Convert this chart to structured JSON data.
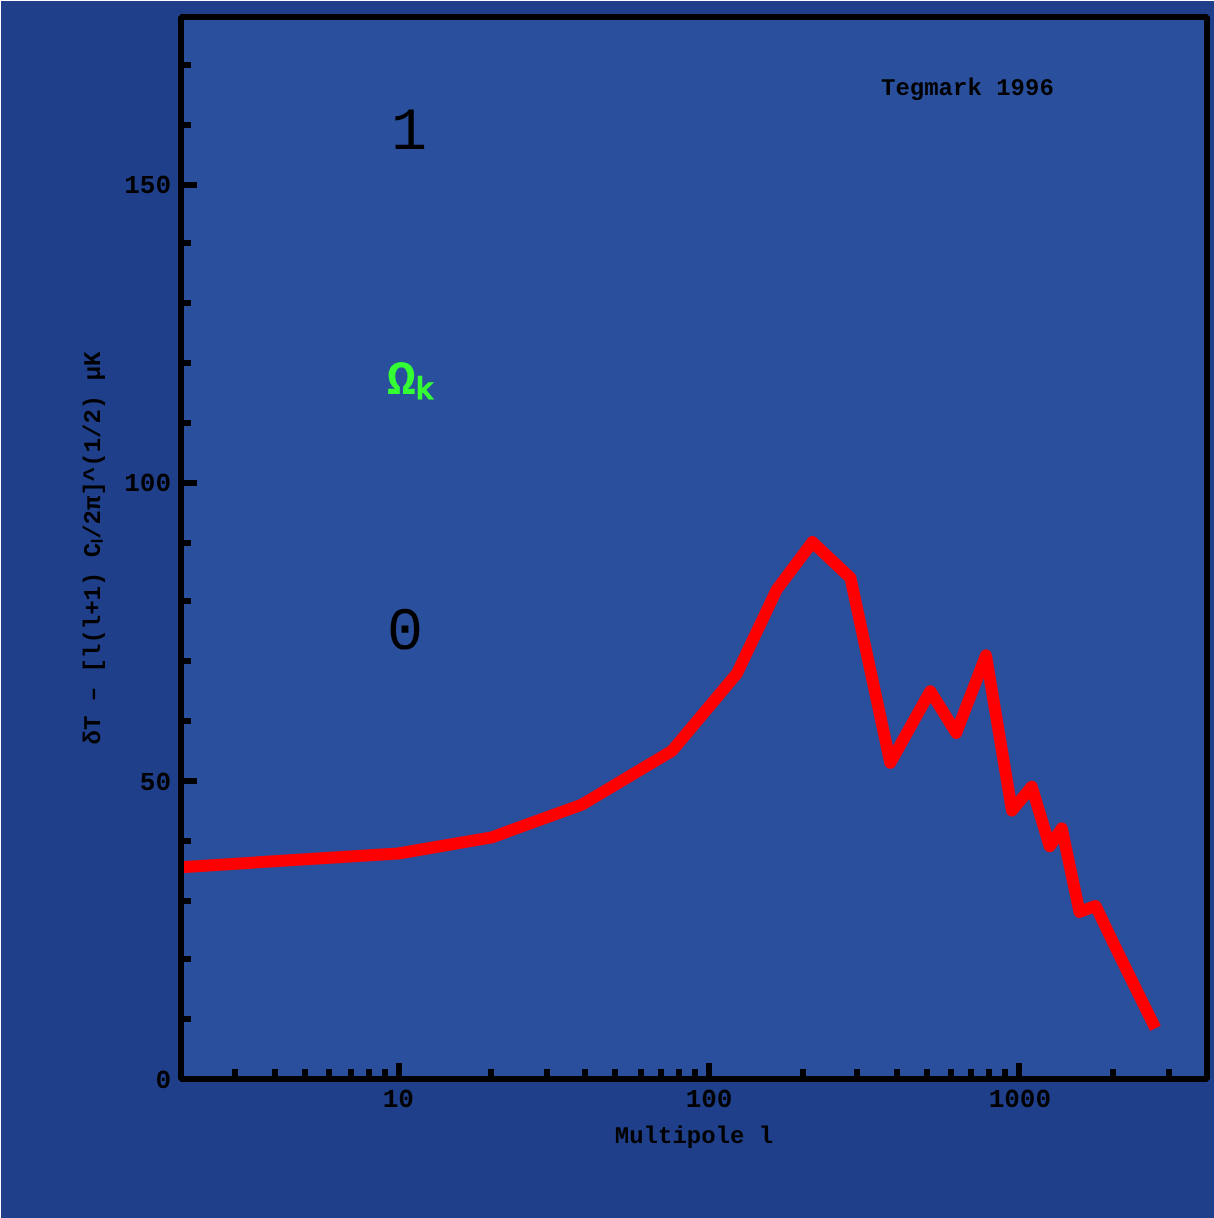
{
  "chart_data": {
    "type": "line",
    "xlabel": "Multipole l",
    "ylabel": "δT – [l(l+1) Cₗ/2π]^(1/2) μK",
    "x": [
      2,
      10,
      20,
      39,
      76,
      123,
      165,
      215,
      285,
      383,
      515,
      624,
      778,
      943,
      1092,
      1247,
      1364,
      1556,
      1753,
      2033,
      2730
    ],
    "series": [
      {
        "color": "#ff0000",
        "values": [
          35.5,
          37.8,
          40.5,
          46,
          55,
          68,
          82,
          90,
          84,
          53,
          65,
          58,
          71,
          45,
          49,
          39,
          42,
          28,
          29,
          22,
          8.5
        ]
      }
    ],
    "log": "x",
    "xlim": [
      2,
      4000
    ],
    "xticks": [
      10,
      100,
      1000
    ],
    "ylim": [
      0,
      178
    ],
    "yticks": [
      0,
      50,
      100,
      150
    ],
    "grid": false,
    "legend": false,
    "marker": "none",
    "line_style": "solid",
    "annotations": [
      "Tegmark 1996",
      "1",
      "Ωₖ",
      "0"
    ]
  }
}
